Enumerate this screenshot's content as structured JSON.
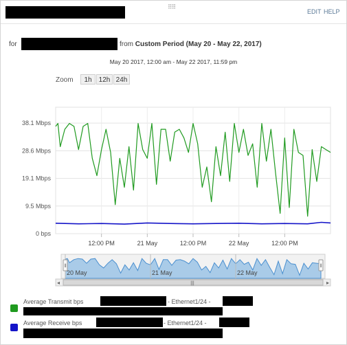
{
  "header": {
    "edit_label": "EDIT",
    "help_label": "HELP"
  },
  "subtitle": {
    "prefix": "for",
    "from_label": "from",
    "period": "Custom Period (May 20 - May 22, 2017)"
  },
  "date_range": "May 20 2017, 12:00 am - May 22 2017, 11:59 pm",
  "zoom": {
    "label": "Zoom",
    "buttons": [
      "1h",
      "12h",
      "24h"
    ]
  },
  "colors": {
    "transmit": "#1f9a1f",
    "receive": "#1414c8",
    "navigator_fill": "#a9cbe8",
    "navigator_line": "#4a8fcf"
  },
  "chart_data": {
    "type": "line",
    "title": "",
    "xlabel": "",
    "ylabel": "",
    "y_ticks": [
      "0 bps",
      "9.5 Mbps",
      "19.1 Mbps",
      "28.6 Mbps",
      "38.1 Mbps"
    ],
    "ylim": [
      0,
      43.6
    ],
    "x_ticks": [
      "12:00 PM",
      "21 May",
      "12:00 PM",
      "22 May",
      "12:00 PM"
    ],
    "x_tick_hours": [
      12,
      24,
      36,
      48,
      60
    ],
    "xlim_hours": [
      0,
      72
    ],
    "grid": true,
    "legend_position": "bottom",
    "series": [
      {
        "name": "Average Transmit bps",
        "interface": "- Ethernet1/24 -",
        "x_hours": [
          0,
          0.6,
          1.2,
          2.4,
          3.6,
          4.8,
          6,
          7.2,
          8.4,
          9.6,
          10.8,
          12,
          13.2,
          14.4,
          15.6,
          16.8,
          18,
          19.2,
          20.4,
          21.6,
          22.8,
          24,
          25.2,
          26.4,
          27.6,
          28.8,
          30,
          31.2,
          32.4,
          33.6,
          34.8,
          36,
          37.2,
          38.4,
          39.6,
          40.8,
          42,
          43.2,
          44.4,
          45.6,
          46.8,
          48,
          49.2,
          50.4,
          51.6,
          52.8,
          54,
          55.2,
          56.4,
          57.6,
          58.8,
          60,
          61.2,
          62.4,
          63.6,
          64.8,
          66,
          67.2,
          68.4,
          69.6,
          70.8,
          72
        ],
        "values": [
          37,
          38,
          30,
          36,
          38,
          37,
          29,
          37,
          38,
          26,
          20,
          29,
          36,
          28,
          10,
          26,
          16,
          30,
          15,
          38,
          29,
          26,
          38,
          17,
          36,
          36,
          25,
          35,
          36,
          33,
          28,
          38,
          31,
          16,
          23,
          11,
          30,
          20,
          35,
          18,
          38,
          28,
          36,
          27,
          31,
          16,
          38,
          25,
          36,
          21,
          7,
          33,
          9,
          36,
          28,
          27,
          6,
          29,
          18,
          30,
          29,
          28
        ]
      },
      {
        "name": "Average Receive bps",
        "interface": "- Ethernet1/24 -",
        "x_hours": [
          0,
          6,
          12,
          18,
          24,
          30,
          36,
          42,
          48,
          54,
          60,
          66,
          69.6,
          72
        ],
        "values": [
          3.6,
          3.4,
          3.5,
          3.3,
          3.7,
          3.5,
          3.4,
          3.5,
          3.6,
          3.4,
          3.5,
          3.4,
          3.9,
          3.7
        ]
      }
    ]
  },
  "navigator": {
    "tick_labels": [
      "20 May",
      "21 May",
      "22 May"
    ],
    "tick_hours": [
      0,
      24,
      48
    ],
    "handle_glyph": "⦀",
    "scroll_grip": "|||",
    "left_arrow": "◂",
    "right_arrow": "▸"
  }
}
